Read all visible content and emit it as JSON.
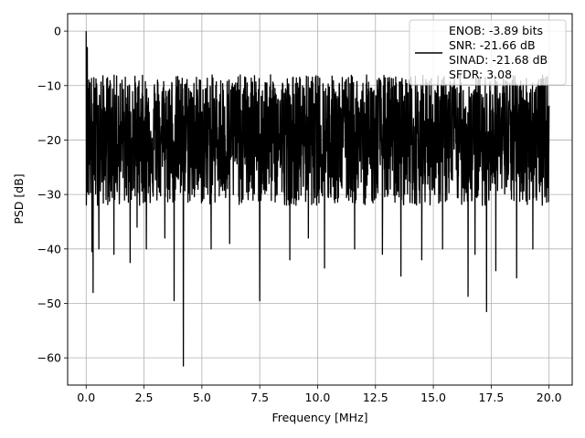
{
  "chart_data": {
    "type": "line",
    "title": "",
    "xlabel": "Frequency [MHz]",
    "ylabel": "PSD [dB]",
    "xlim": [
      -0.8,
      21.0
    ],
    "ylim": [
      -65.0,
      3.2
    ],
    "xticks": [
      0.0,
      2.5,
      5.0,
      7.5,
      10.0,
      12.5,
      15.0,
      17.5,
      20.0
    ],
    "xtick_labels": [
      "0.0",
      "2.5",
      "5.0",
      "7.5",
      "10.0",
      "12.5",
      "15.0",
      "17.5",
      "20.0"
    ],
    "yticks": [
      0,
      -10,
      -20,
      -30,
      -40,
      -50,
      -60
    ],
    "ytick_labels": [
      "0",
      "−10",
      "−20",
      "−30",
      "−40",
      "−50",
      "−60"
    ],
    "grid": true,
    "legend_position": "top-right",
    "legend_lines": [
      "ENOB: -3.89 bits",
      "SNR: -21.66 dB",
      "SINAD: -21.68 dB",
      "SFDR: 3.08"
    ],
    "series": [
      {
        "color": "#000000",
        "x_range": [
          0.0,
          20.0
        ],
        "noise_floor_db": -20.0,
        "upper_envelope_db": -8.0,
        "typical_lower_db": -32.0,
        "peaks": [
          [
            0.0,
            0.0
          ],
          [
            0.05,
            -3.0
          ],
          [
            0.12,
            -9.0
          ]
        ],
        "notches": [
          [
            0.25,
            -40.5
          ],
          [
            0.3,
            -48.0
          ],
          [
            0.55,
            -40.0
          ],
          [
            1.2,
            -41.0
          ],
          [
            1.9,
            -42.5
          ],
          [
            2.2,
            -36.0
          ],
          [
            2.6,
            -40.0
          ],
          [
            3.4,
            -38.0
          ],
          [
            3.8,
            -49.5
          ],
          [
            4.2,
            -61.5
          ],
          [
            5.4,
            -40.0
          ],
          [
            6.2,
            -39.0
          ],
          [
            7.5,
            -49.5
          ],
          [
            8.8,
            -42.0
          ],
          [
            9.6,
            -38.0
          ],
          [
            10.3,
            -43.5
          ],
          [
            11.6,
            -40.0
          ],
          [
            12.8,
            -41.0
          ],
          [
            13.6,
            -45.0
          ],
          [
            14.5,
            -42.0
          ],
          [
            15.4,
            -40.0
          ],
          [
            16.5,
            -48.7
          ],
          [
            16.8,
            -41.0
          ],
          [
            17.3,
            -51.5
          ],
          [
            17.7,
            -44.0
          ],
          [
            18.6,
            -45.3
          ],
          [
            19.3,
            -40.0
          ]
        ]
      }
    ]
  }
}
